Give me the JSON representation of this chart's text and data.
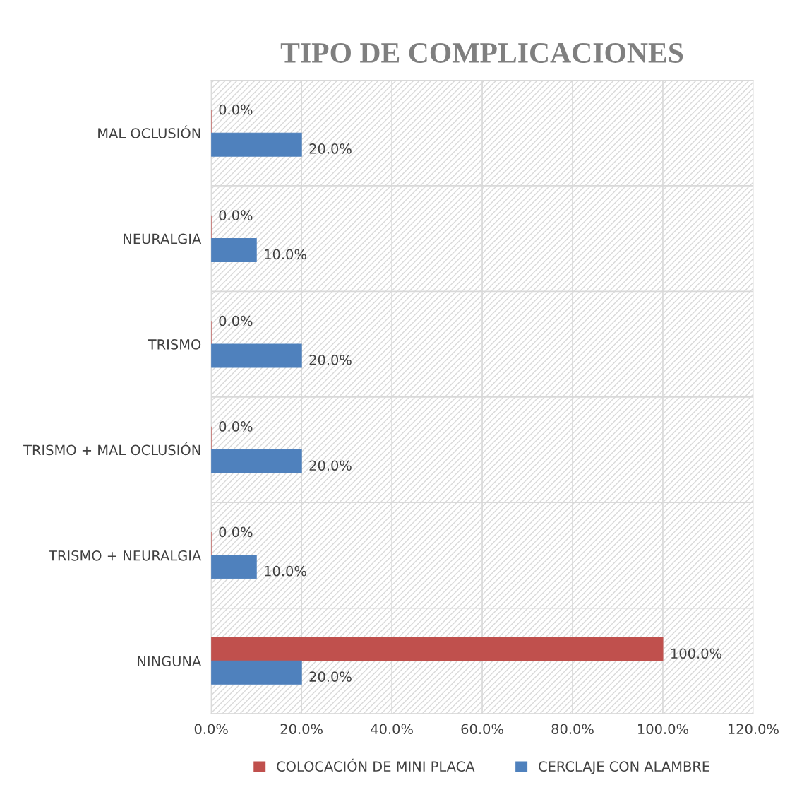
{
  "chart_data": {
    "type": "bar",
    "orientation": "horizontal",
    "title": "TIPO DE COMPLICACIONES",
    "categories": [
      "MAL OCLUSIÓN",
      "NEURALGIA",
      "TRISMO",
      "TRISMO + MAL OCLUSIÓN",
      "TRISMO + NEURALGIA",
      "NINGUNA"
    ],
    "series": [
      {
        "name": "COLOCACIÓN DE MINI PLACA",
        "color": "#c0504d",
        "values": [
          0,
          0,
          0,
          0,
          0,
          100
        ],
        "value_labels": [
          "0.0%",
          "0.0%",
          "0.0%",
          "0.0%",
          "0.0%",
          "100.0%"
        ]
      },
      {
        "name": "CERCLAJE CON ALAMBRE",
        "color": "#4f81bd",
        "values": [
          20,
          10,
          20,
          20,
          10,
          20
        ],
        "value_labels": [
          "20.0%",
          "10.0%",
          "20.0%",
          "20.0%",
          "10.0%",
          "20.0%"
        ]
      }
    ],
    "xlim": [
      0,
      120
    ],
    "xticks": [
      {
        "value": 0,
        "label": "0.0%"
      },
      {
        "value": 20,
        "label": "20.0%"
      },
      {
        "value": 40,
        "label": "40.0%"
      },
      {
        "value": 60,
        "label": "60.0%"
      },
      {
        "value": 80,
        "label": "80.0%"
      },
      {
        "value": 100,
        "label": "100.0%"
      },
      {
        "value": 120,
        "label": "120.0%"
      }
    ],
    "grid": true,
    "legend": "bottom"
  }
}
